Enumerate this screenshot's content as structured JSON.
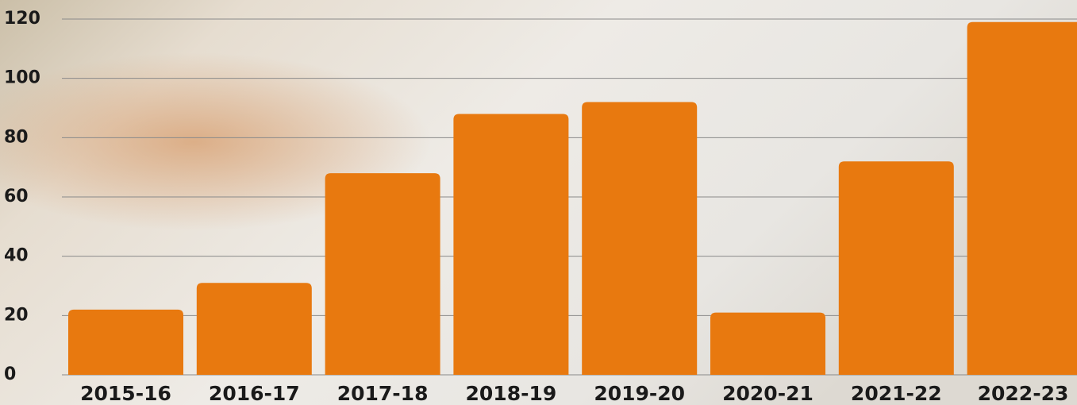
{
  "chart_data": {
    "type": "bar",
    "categories": [
      "2015-16",
      "2016-17",
      "2017-18",
      "2018-19",
      "2019-20",
      "2020-21",
      "2021-22",
      "2022-23"
    ],
    "values": [
      22,
      31,
      68,
      88,
      92,
      21,
      72,
      119
    ],
    "color": "#e8790f",
    "ylim": [
      0,
      120
    ],
    "yticks": [
      0,
      20,
      40,
      60,
      80,
      100,
      120
    ],
    "grid": true
  }
}
